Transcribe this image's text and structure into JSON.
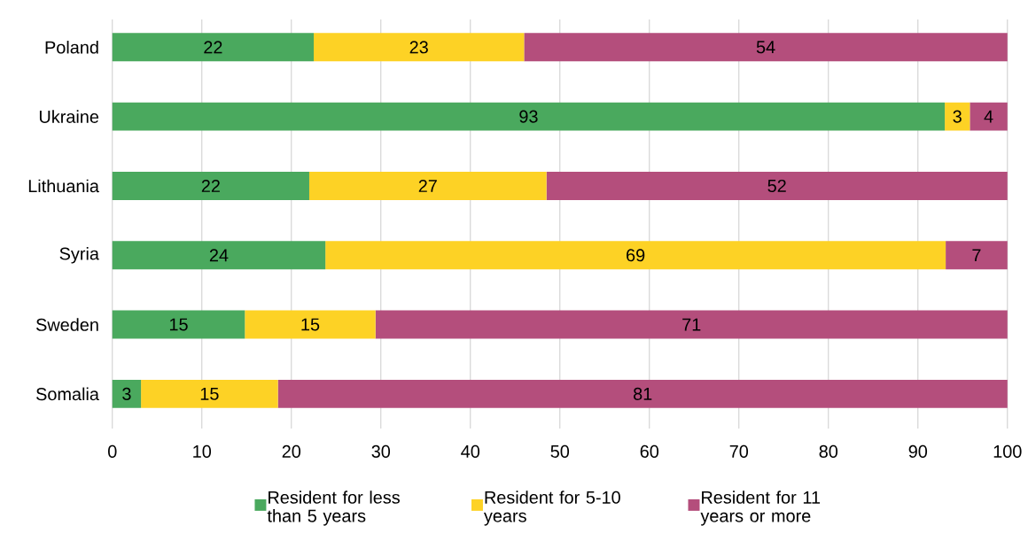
{
  "chart_data": {
    "type": "bar",
    "orientation": "horizontal",
    "stacked": true,
    "grid": "x",
    "legend": "bottom",
    "categories": [
      "Poland",
      "Ukraine",
      "Lithuania",
      "Syria",
      "Sweden",
      "Somalia"
    ],
    "series": [
      {
        "name": "Resident for less than 5 years",
        "color": "#4aa95e",
        "values": [
          22.5,
          93,
          22,
          23.8,
          14.8,
          3.2
        ],
        "value_labels": [
          "22",
          "93",
          "22",
          "24",
          "15",
          "3"
        ]
      },
      {
        "name": "Resident for 5-10 years",
        "color": "#fdd225",
        "values": [
          23.5,
          2.8,
          26.5,
          69.3,
          14.6,
          15.3
        ],
        "value_labels": [
          "23",
          "3",
          "27",
          "69",
          "15",
          "15"
        ]
      },
      {
        "name": "Resident for 11 years or more",
        "color": "#b44e7c",
        "values": [
          54,
          4.2,
          51.5,
          6.9,
          70.6,
          81.5
        ],
        "value_labels": [
          "54",
          "4",
          "52",
          "7",
          "71",
          "81"
        ]
      }
    ],
    "xlim": [
      0,
      100
    ],
    "xticks": [
      0,
      10,
      20,
      30,
      40,
      50,
      60,
      70,
      80,
      90,
      100
    ]
  }
}
